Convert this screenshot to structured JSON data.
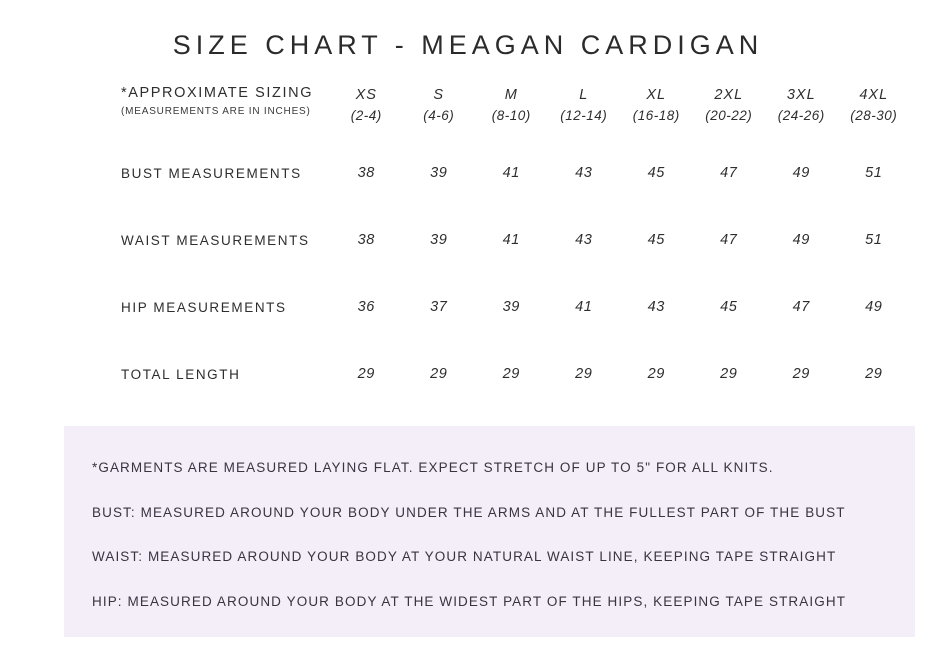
{
  "page": {
    "title": "SIZE CHART - MEAGAN CARDIGAN"
  },
  "table": {
    "header": {
      "label": "*APPROXIMATE SIZING",
      "sublabel": "(MEASUREMENTS ARE IN INCHES)",
      "columns": [
        {
          "size": "XS",
          "range": "(2-4)"
        },
        {
          "size": "S",
          "range": "(4-6)"
        },
        {
          "size": "M",
          "range": "(8-10)"
        },
        {
          "size": "L",
          "range": "(12-14)"
        },
        {
          "size": "XL",
          "range": "(16-18)"
        },
        {
          "size": "2XL",
          "range": "(20-22)"
        },
        {
          "size": "3XL",
          "range": "(24-26)"
        },
        {
          "size": "4XL",
          "range": "(28-30)"
        }
      ]
    },
    "rows": [
      {
        "label": "BUST MEASUREMENTS",
        "values": [
          "38",
          "39",
          "41",
          "43",
          "45",
          "47",
          "49",
          "51"
        ]
      },
      {
        "label": "WAIST MEASUREMENTS",
        "values": [
          "38",
          "39",
          "41",
          "43",
          "45",
          "47",
          "49",
          "51"
        ]
      },
      {
        "label": "HIP MEASUREMENTS",
        "values": [
          "36",
          "37",
          "39",
          "41",
          "43",
          "45",
          "47",
          "49"
        ]
      },
      {
        "label": "TOTAL LENGTH",
        "values": [
          "29",
          "29",
          "29",
          "29",
          "29",
          "29",
          "29",
          "29"
        ]
      }
    ]
  },
  "notes": {
    "background_color": "#f4eef9",
    "lines": [
      "*GARMENTS ARE MEASURED LAYING FLAT. EXPECT STRETCH OF UP TO 5\" FOR ALL KNITS.",
      "BUST: MEASURED AROUND YOUR BODY UNDER THE ARMS AND AT THE FULLEST PART OF THE BUST",
      "WAIST: MEASURED AROUND YOUR BODY AT YOUR NATURAL WAIST LINE, KEEPING TAPE STRAIGHT",
      "HIP: MEASURED AROUND YOUR BODY AT THE WIDEST PART OF THE HIPS, KEEPING TAPE STRAIGHT"
    ]
  },
  "colors": {
    "text": "#2e2e2e",
    "notes_text": "#3a3442",
    "background": "#ffffff"
  }
}
